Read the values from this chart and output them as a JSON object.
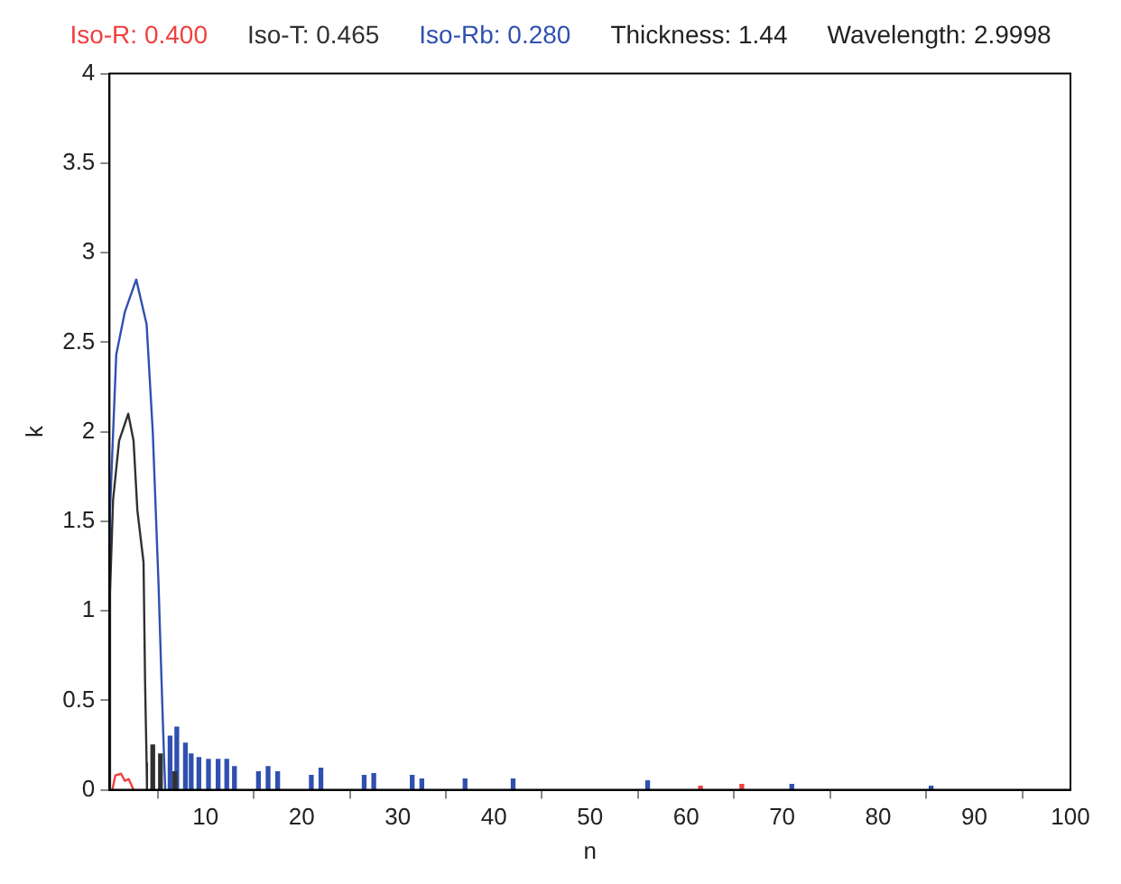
{
  "chart_data": {
    "type": "line",
    "xlabel": "n",
    "ylabel": "k",
    "legend": "top",
    "marker": "none",
    "line_style": "solid",
    "annotations": [
      "Thickness: 1.44",
      "Wavelength: 2.9998"
    ],
    "xlim": [
      0,
      100
    ],
    "xticks": [
      10,
      20,
      30,
      40,
      50,
      60,
      70,
      80,
      90,
      100
    ],
    "ylim": [
      0,
      4
    ],
    "yticks": [
      0,
      0.5,
      1,
      1.5,
      2,
      2.5,
      3,
      3.5,
      4
    ],
    "series": [
      {
        "name": "Iso-R: 0.400",
        "color": "#f04040",
        "x": [
          0.3,
          0.6,
          1.2,
          1.6,
          2.0,
          2.5
        ],
        "values": [
          0,
          0.08,
          0.09,
          0.05,
          0.06,
          0
        ]
      },
      {
        "type": "bar",
        "color": "#f04040",
        "x": [
          61.5,
          65.8
        ],
        "values": [
          0.02,
          0.03
        ]
      },
      {
        "name": "Iso-T: 0.465",
        "color": "#303030",
        "x": [
          0,
          0.05,
          0.37,
          1.0,
          1.95,
          2.5,
          2.9,
          3.54,
          3.7,
          3.86,
          3.9
        ],
        "values": [
          0,
          1.1,
          1.62,
          1.95,
          2.1,
          1.95,
          1.56,
          1.27,
          0.6,
          0.15,
          0
        ]
      },
      {
        "type": "bar",
        "color": "#303030",
        "x": [
          4.5,
          5.3,
          6.8
        ],
        "values": [
          0.25,
          0.2,
          0.1
        ]
      },
      {
        "name": "Iso-Rb: 0.280",
        "color": "#3050b0",
        "x": [
          0,
          0.05,
          0.7,
          1.6,
          2.78,
          3.86,
          4.5,
          5.1,
          5.4,
          5.6,
          5.8
        ],
        "values": [
          0,
          1.56,
          2.43,
          2.67,
          2.85,
          2.6,
          2.0,
          1.15,
          0.63,
          0.3,
          0
        ]
      },
      {
        "type": "bar",
        "color": "#3050b0",
        "x": [
          6.3,
          7.0,
          7.9,
          8.5,
          9.3,
          10.3,
          11.3,
          12.2,
          13,
          15.5,
          16.5,
          17.5,
          21,
          22,
          26.5,
          27.5,
          31.5,
          32.5,
          37,
          42,
          56,
          71,
          85.5
        ],
        "values": [
          0.3,
          0.35,
          0.26,
          0.2,
          0.18,
          0.17,
          0.17,
          0.17,
          0.13,
          0.1,
          0.13,
          0.1,
          0.08,
          0.12,
          0.08,
          0.09,
          0.08,
          0.06,
          0.06,
          0.06,
          0.05,
          0.03,
          0.02
        ]
      }
    ]
  }
}
